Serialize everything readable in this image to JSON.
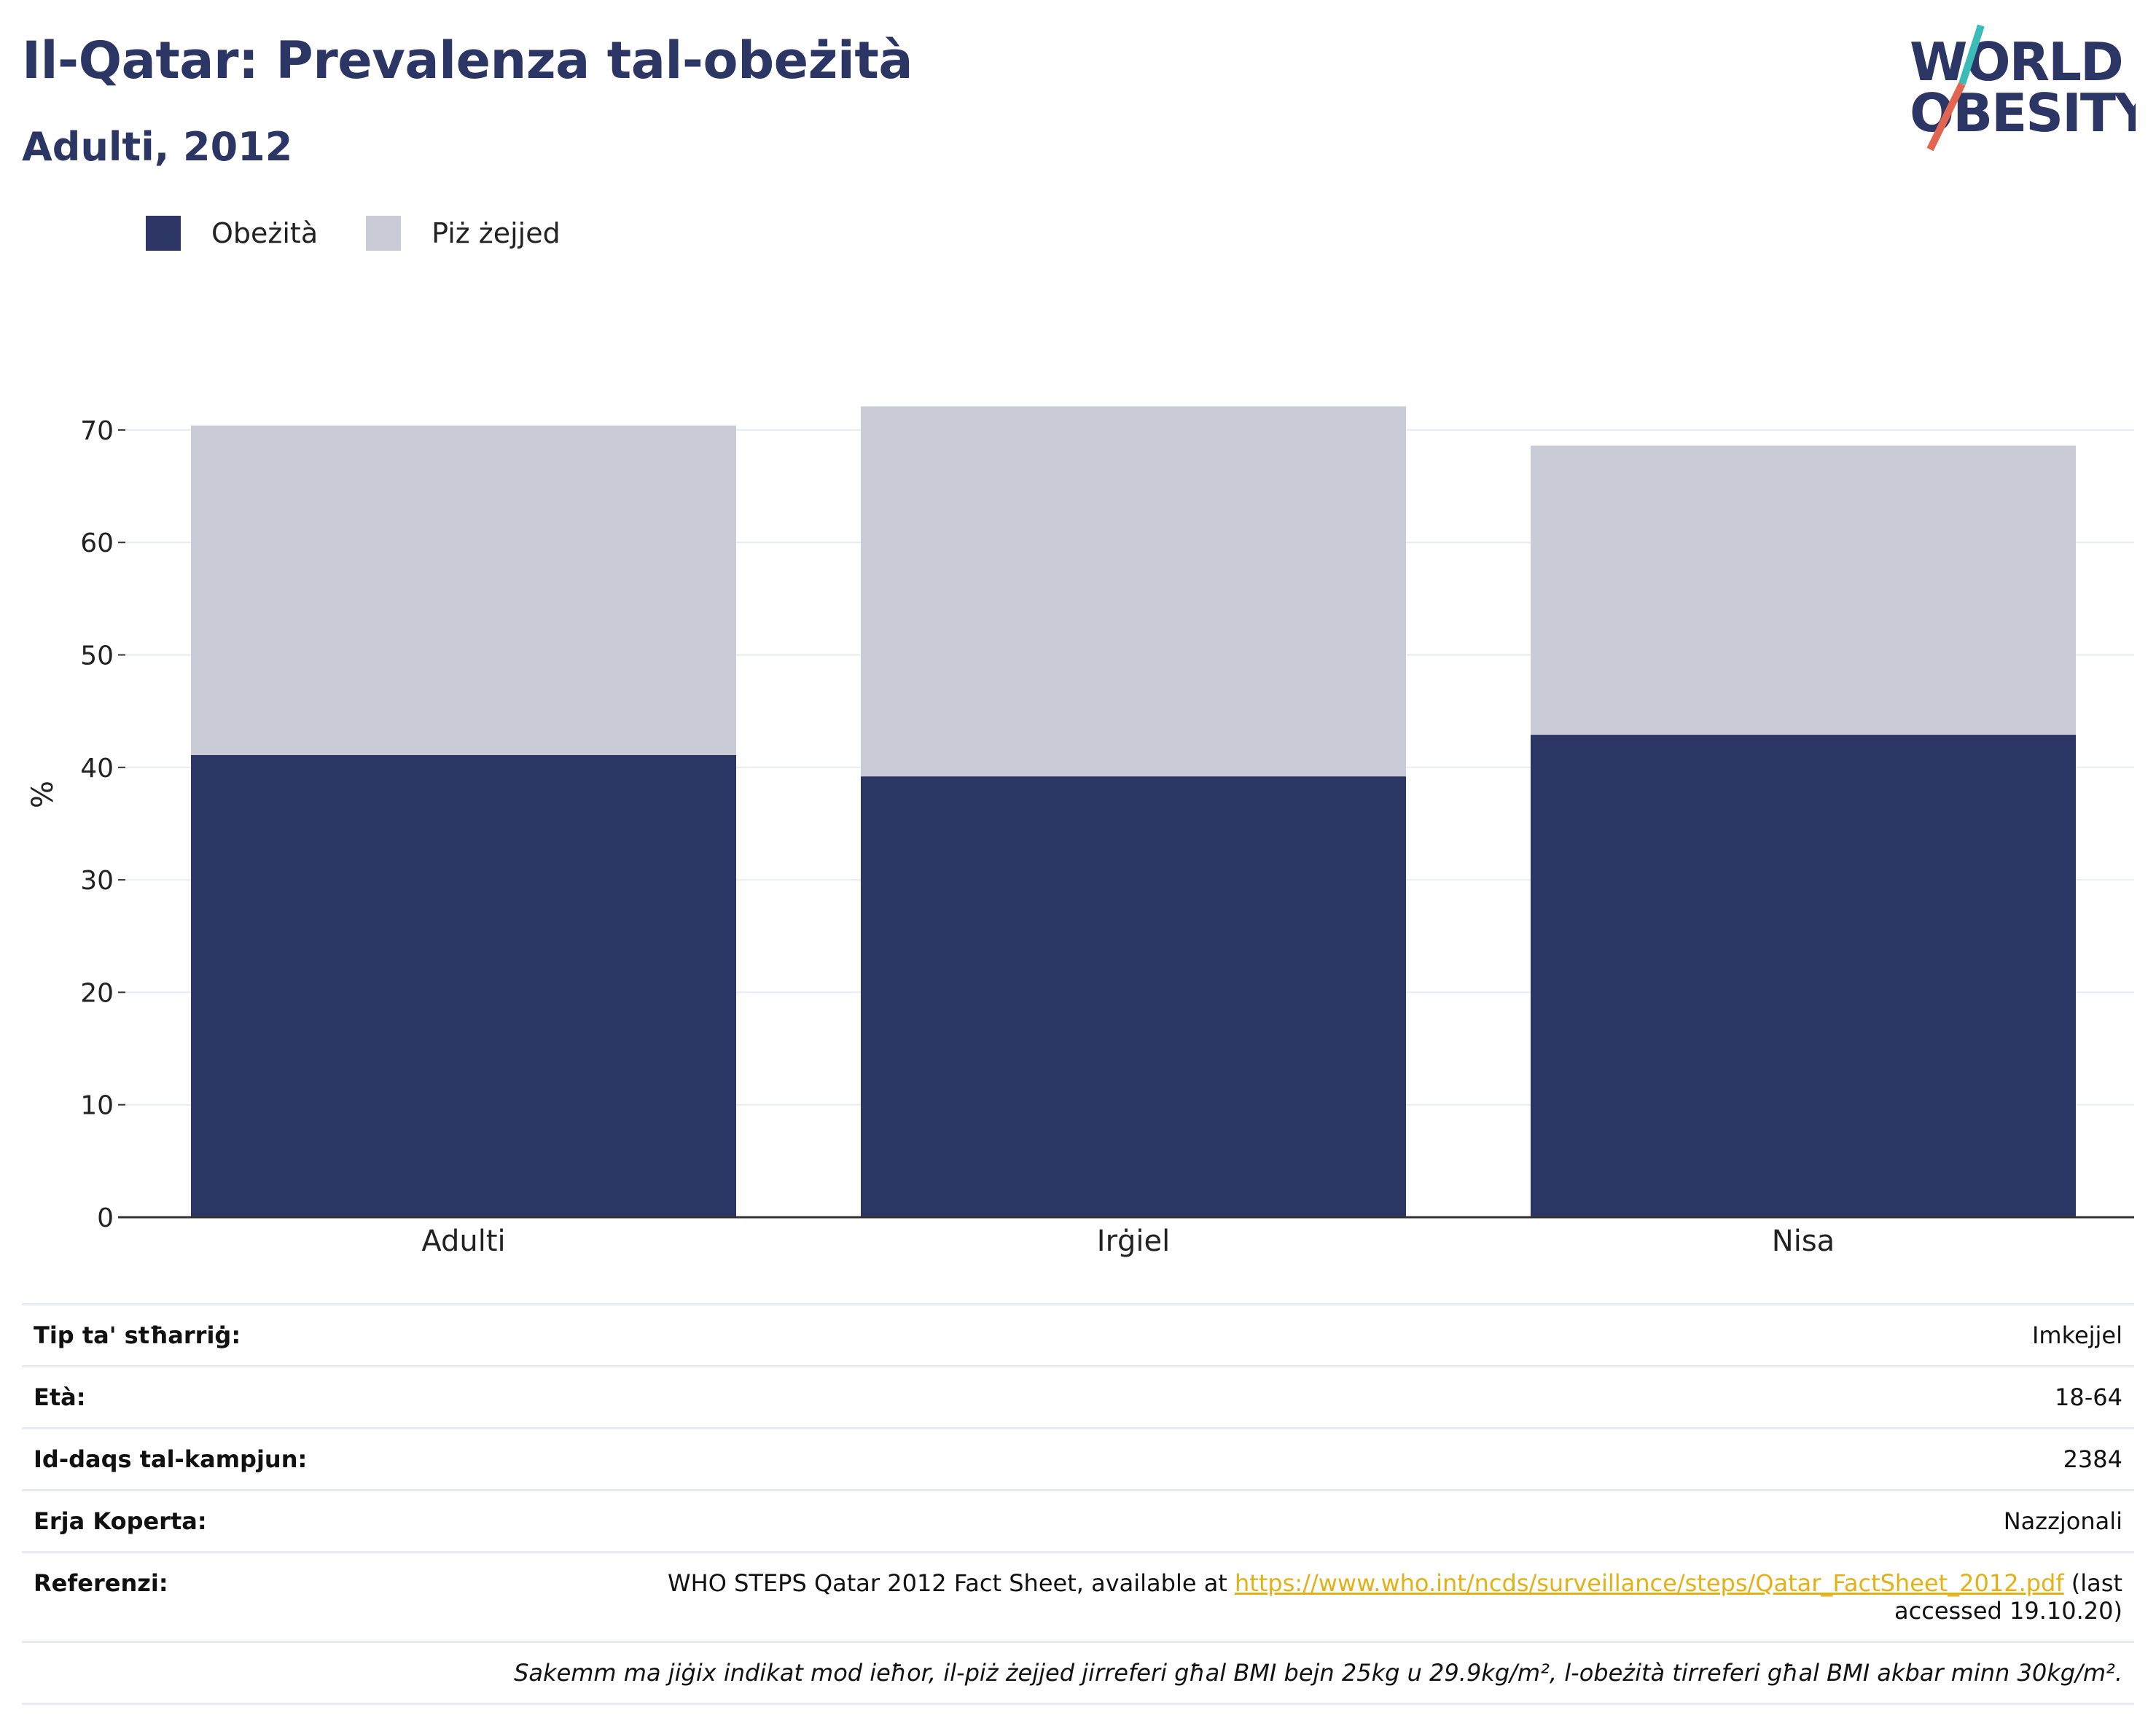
{
  "header": {
    "title": "Il-Qatar: Prevalenza tal-obeżità",
    "subtitle": "Adulti, 2012"
  },
  "logo": {
    "line1": "WORLD",
    "line2": "OBESITY",
    "colors": {
      "text": "#2b3664",
      "slash_top": "#3bbcb8",
      "slash_bottom": "#e2654f"
    }
  },
  "legend": {
    "items": [
      {
        "label": "Obeżità",
        "color": "#2b3664"
      },
      {
        "label": "Piż żejjed",
        "color": "#c9ccd7"
      }
    ]
  },
  "chart_data": {
    "type": "bar",
    "stacked": true,
    "categories": [
      "Adulti",
      "Irġiel",
      "Nisa"
    ],
    "series": [
      {
        "name": "Obeżità",
        "color": "#2b3664",
        "values": [
          41.1,
          39.2,
          42.9
        ]
      },
      {
        "name": "Piż żejjed",
        "color": "#c9ccd7",
        "values": [
          29.3,
          32.9,
          25.7
        ]
      }
    ],
    "ylabel": "%",
    "ylim": [
      0,
      75
    ],
    "yticks": [
      0,
      10,
      20,
      30,
      40,
      50,
      60,
      70
    ],
    "grid": true,
    "legend_position": "top-left"
  },
  "meta": {
    "rows": [
      {
        "key": "Tip ta' stħarriġ:",
        "value": "Imkejjel"
      },
      {
        "key": "Età:",
        "value": "18-64"
      },
      {
        "key": "Id-daqs tal-kampjun:",
        "value": "2384"
      },
      {
        "key": "Erja Koperta:",
        "value": "Nazzjonali"
      }
    ],
    "reference": {
      "key": "Referenzi:",
      "prefix": "WHO STEPS Qatar 2012 Fact Sheet, available at ",
      "link": "https://www.who.int/ncds/surveillance/steps/Qatar_FactSheet_2012.pdf",
      "suffix": " (last accessed 19.10.20)"
    },
    "note": "Sakemm ma jiġix indikat mod ieħor, il-piż żejjed jirreferi għal BMI bejn 25kg u 29.9kg/m², l-obeżità tirreferi għal BMI akbar minn 30kg/m²."
  }
}
